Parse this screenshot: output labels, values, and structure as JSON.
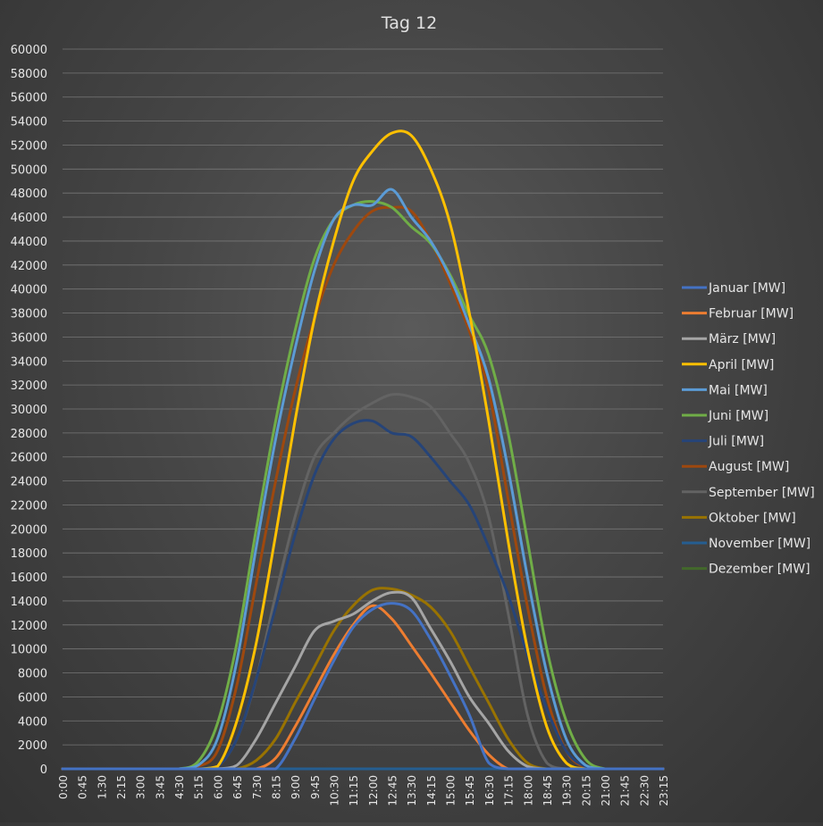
{
  "chart_data": {
    "type": "line",
    "title": "Tag 12",
    "xlabel": "",
    "ylabel": "",
    "ylim": [
      0,
      60000
    ],
    "yticks": [
      0,
      2000,
      4000,
      6000,
      8000,
      10000,
      12000,
      14000,
      16000,
      18000,
      20000,
      22000,
      24000,
      26000,
      28000,
      30000,
      32000,
      34000,
      36000,
      38000,
      40000,
      42000,
      44000,
      46000,
      48000,
      50000,
      52000,
      54000,
      56000,
      58000,
      60000
    ],
    "x": [
      "0:00",
      "0:45",
      "1:30",
      "2:15",
      "3:00",
      "3:45",
      "4:30",
      "5:15",
      "6:00",
      "6:45",
      "7:30",
      "8:15",
      "9:00",
      "9:45",
      "10:30",
      "11:15",
      "12:00",
      "12:45",
      "13:30",
      "14:15",
      "15:00",
      "15:45",
      "16:30",
      "17:15",
      "18:00",
      "18:45",
      "19:30",
      "20:15",
      "21:00",
      "21:45",
      "22:30",
      "23:15"
    ],
    "grid": true,
    "legend": "right",
    "series": [
      {
        "name": "Januar [MW]",
        "color": "#4472c4",
        "values": [
          0,
          0,
          0,
          0,
          0,
          0,
          0,
          0,
          0,
          0,
          0,
          0,
          2500,
          5800,
          9000,
          11800,
          13300,
          13800,
          13200,
          10800,
          7800,
          4500,
          500,
          0,
          0,
          0,
          0,
          0,
          0,
          0,
          0,
          0
        ]
      },
      {
        "name": "Februar [MW]",
        "color": "#ed7d31",
        "values": [
          0,
          0,
          0,
          0,
          0,
          0,
          0,
          0,
          0,
          0,
          0,
          900,
          3500,
          6500,
          9500,
          12000,
          13600,
          12500,
          10300,
          8000,
          5600,
          3200,
          1200,
          0,
          0,
          0,
          0,
          0,
          0,
          0,
          0,
          0
        ]
      },
      {
        "name": "März [MW]",
        "color": "#a5a5a5",
        "values": [
          0,
          0,
          0,
          0,
          0,
          0,
          0,
          0,
          0,
          300,
          2500,
          5500,
          8500,
          11500,
          12300,
          12900,
          14000,
          14700,
          14300,
          11700,
          9000,
          6000,
          3800,
          1500,
          200,
          0,
          0,
          0,
          0,
          0,
          0,
          0
        ]
      },
      {
        "name": "April [MW]",
        "color": "#ffc000",
        "values": [
          0,
          0,
          0,
          0,
          0,
          0,
          0,
          0,
          200,
          4000,
          10500,
          19500,
          29000,
          37500,
          44000,
          49000,
          51500,
          53000,
          52800,
          50000,
          45500,
          38000,
          29000,
          19000,
          10000,
          3500,
          500,
          0,
          0,
          0,
          0,
          0
        ]
      },
      {
        "name": "Mai [MW]",
        "color": "#5b9bd5",
        "values": [
          0,
          0,
          0,
          0,
          0,
          0,
          0,
          300,
          2500,
          9000,
          18500,
          27500,
          35000,
          41500,
          45800,
          47000,
          47000,
          48300,
          46000,
          44000,
          41000,
          37000,
          32500,
          25000,
          16000,
          8000,
          2500,
          300,
          0,
          0,
          0,
          0
        ]
      },
      {
        "name": "Juni [MW]",
        "color": "#70ad47",
        "values": [
          0,
          0,
          0,
          0,
          0,
          0,
          0,
          600,
          3800,
          10500,
          20000,
          29000,
          36500,
          42500,
          45800,
          47000,
          47300,
          46800,
          45200,
          43800,
          41200,
          37800,
          34500,
          28000,
          19000,
          10000,
          4000,
          800,
          0,
          0,
          0,
          0
        ]
      },
      {
        "name": "Juli [MW]",
        "color": "#264478",
        "values": [
          0,
          0,
          0,
          0,
          0,
          0,
          0,
          0,
          200,
          2500,
          7500,
          13500,
          19500,
          24500,
          27500,
          28800,
          29000,
          28000,
          27700,
          26000,
          24000,
          22000,
          18500,
          14500,
          9500,
          5000,
          1500,
          200,
          0,
          0,
          0,
          0
        ]
      },
      {
        "name": "August [MW]",
        "color": "#9e480e",
        "values": [
          0,
          0,
          0,
          0,
          0,
          0,
          0,
          200,
          1500,
          7000,
          15500,
          24000,
          31500,
          37500,
          42000,
          44800,
          46500,
          46800,
          46500,
          44000,
          40500,
          36500,
          31500,
          22500,
          13500,
          6000,
          1500,
          100,
          0,
          0,
          0,
          0
        ]
      },
      {
        "name": "September [MW]",
        "color": "#636363",
        "values": [
          0,
          0,
          0,
          0,
          0,
          0,
          0,
          0,
          200,
          2500,
          7500,
          14500,
          21000,
          26000,
          28000,
          29500,
          30500,
          31200,
          31000,
          30200,
          28000,
          25500,
          21000,
          13000,
          4500,
          500,
          0,
          0,
          0,
          0,
          0,
          0
        ]
      },
      {
        "name": "Oktober [MW]",
        "color": "#997300",
        "values": [
          0,
          0,
          0,
          0,
          0,
          0,
          0,
          0,
          0,
          0,
          700,
          2500,
          5500,
          8500,
          11500,
          13600,
          14900,
          15000,
          14500,
          13500,
          11500,
          8500,
          5500,
          2500,
          500,
          0,
          0,
          0,
          0,
          0,
          0,
          0
        ]
      },
      {
        "name": "November [MW]",
        "color": "#255e91",
        "values": [
          0,
          0,
          0,
          0,
          0,
          0,
          0,
          0,
          0,
          0,
          0,
          0,
          0,
          0,
          0,
          0,
          0,
          0,
          0,
          0,
          0,
          0,
          0,
          0,
          0,
          0,
          0,
          0,
          0,
          0,
          0,
          0
        ]
      },
      {
        "name": "Dezember [MW]",
        "color": "#43682b",
        "values": [
          0,
          0,
          0,
          0,
          0,
          0,
          0,
          0,
          0,
          0,
          0,
          0,
          0,
          0,
          0,
          0,
          0,
          0,
          0,
          0,
          0,
          0,
          0,
          0,
          0,
          0,
          0,
          0,
          0,
          0,
          0,
          0
        ]
      }
    ]
  }
}
